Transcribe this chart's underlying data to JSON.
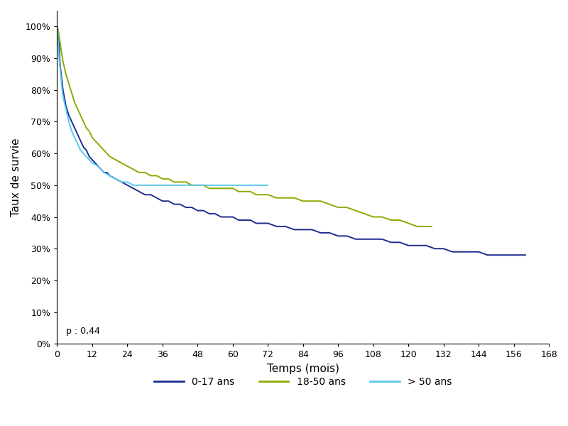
{
  "xlabel": "Temps (mois)",
  "ylabel": "Taux de survie",
  "xlim": [
    0,
    168
  ],
  "ylim": [
    0,
    1.05
  ],
  "xticks": [
    0,
    12,
    24,
    36,
    48,
    60,
    72,
    84,
    96,
    108,
    120,
    132,
    144,
    156,
    168
  ],
  "yticks": [
    0.0,
    0.1,
    0.2,
    0.3,
    0.4,
    0.5,
    0.6,
    0.7,
    0.8,
    0.9,
    1.0
  ],
  "pvalue_text": "p : 0,44",
  "legend_labels": [
    "0-17 ans",
    "18-50 ans",
    "> 50 ans"
  ],
  "colors": [
    "#1e2e8e",
    "#8aab00",
    "#5bc8f0"
  ],
  "linewidths": [
    1.4,
    1.4,
    1.4
  ],
  "series_0_17": {
    "x": [
      0,
      0.3,
      0.5,
      0.8,
      1,
      1.5,
      2,
      3,
      4,
      5,
      6,
      7,
      8,
      9,
      10,
      11,
      12,
      13,
      14,
      15,
      16,
      17,
      18,
      20,
      22,
      24,
      26,
      28,
      30,
      32,
      34,
      36,
      38,
      40,
      42,
      44,
      46,
      48,
      50,
      52,
      54,
      56,
      58,
      60,
      62,
      64,
      66,
      68,
      70,
      72,
      75,
      78,
      81,
      84,
      87,
      90,
      93,
      96,
      99,
      102,
      105,
      108,
      111,
      114,
      117,
      120,
      123,
      126,
      129,
      132,
      135,
      138,
      141,
      144,
      147,
      150,
      153,
      156,
      160
    ],
    "y": [
      1.0,
      0.98,
      0.96,
      0.92,
      0.88,
      0.84,
      0.8,
      0.75,
      0.72,
      0.7,
      0.68,
      0.66,
      0.64,
      0.62,
      0.61,
      0.59,
      0.58,
      0.57,
      0.56,
      0.55,
      0.54,
      0.54,
      0.53,
      0.52,
      0.51,
      0.5,
      0.49,
      0.48,
      0.47,
      0.47,
      0.46,
      0.45,
      0.45,
      0.44,
      0.44,
      0.43,
      0.43,
      0.42,
      0.42,
      0.41,
      0.41,
      0.4,
      0.4,
      0.4,
      0.39,
      0.39,
      0.39,
      0.38,
      0.38,
      0.38,
      0.37,
      0.37,
      0.36,
      0.36,
      0.36,
      0.35,
      0.35,
      0.34,
      0.34,
      0.33,
      0.33,
      0.33,
      0.33,
      0.32,
      0.32,
      0.31,
      0.31,
      0.31,
      0.3,
      0.3,
      0.29,
      0.29,
      0.29,
      0.29,
      0.28,
      0.28,
      0.28,
      0.28,
      0.28
    ]
  },
  "series_18_50": {
    "x": [
      0,
      0.3,
      0.5,
      1,
      1.5,
      2,
      3,
      4,
      5,
      6,
      7,
      8,
      9,
      10,
      11,
      12,
      13,
      14,
      15,
      16,
      17,
      18,
      20,
      22,
      24,
      26,
      28,
      30,
      32,
      34,
      36,
      38,
      40,
      42,
      44,
      46,
      48,
      50,
      52,
      54,
      56,
      58,
      60,
      62,
      64,
      66,
      68,
      70,
      72,
      75,
      78,
      81,
      84,
      87,
      90,
      93,
      96,
      99,
      102,
      105,
      108,
      111,
      114,
      117,
      120,
      123,
      126,
      128
    ],
    "y": [
      1.0,
      0.99,
      0.98,
      0.95,
      0.92,
      0.89,
      0.85,
      0.82,
      0.79,
      0.76,
      0.74,
      0.72,
      0.7,
      0.68,
      0.67,
      0.65,
      0.64,
      0.63,
      0.62,
      0.61,
      0.6,
      0.59,
      0.58,
      0.57,
      0.56,
      0.55,
      0.54,
      0.54,
      0.53,
      0.53,
      0.52,
      0.52,
      0.51,
      0.51,
      0.51,
      0.5,
      0.5,
      0.5,
      0.49,
      0.49,
      0.49,
      0.49,
      0.49,
      0.48,
      0.48,
      0.48,
      0.47,
      0.47,
      0.47,
      0.46,
      0.46,
      0.46,
      0.45,
      0.45,
      0.45,
      0.44,
      0.43,
      0.43,
      0.42,
      0.41,
      0.4,
      0.4,
      0.39,
      0.39,
      0.38,
      0.37,
      0.37,
      0.37
    ]
  },
  "series_50plus": {
    "x": [
      0,
      0.3,
      0.5,
      1,
      1.5,
      2,
      3,
      4,
      5,
      6,
      7,
      8,
      9,
      10,
      11,
      12,
      14,
      16,
      18,
      20,
      22,
      24,
      26,
      28,
      30,
      32,
      36,
      40,
      44,
      48,
      52,
      56,
      60,
      64,
      68,
      72
    ],
    "y": [
      1.0,
      0.96,
      0.92,
      0.87,
      0.82,
      0.78,
      0.74,
      0.7,
      0.67,
      0.65,
      0.63,
      0.61,
      0.6,
      0.59,
      0.58,
      0.57,
      0.56,
      0.54,
      0.53,
      0.52,
      0.51,
      0.51,
      0.5,
      0.5,
      0.5,
      0.5,
      0.5,
      0.5,
      0.5,
      0.5,
      0.5,
      0.5,
      0.5,
      0.5,
      0.5,
      0.5
    ]
  },
  "background_color": "#ffffff"
}
